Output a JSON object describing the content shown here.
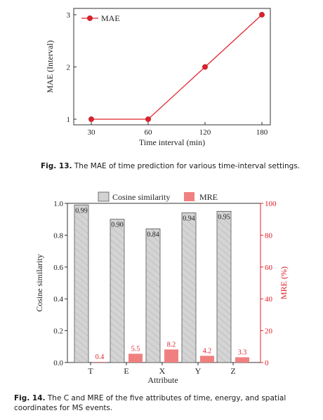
{
  "figure13": {
    "caption_label": "Fig. 13.",
    "caption_text": "The MAE of time prediction for various time-interval settings.",
    "chart_data": {
      "type": "line",
      "x": [
        "30",
        "60",
        "120",
        "180"
      ],
      "series": [
        {
          "name": "MAE",
          "values": [
            1,
            1,
            2,
            3
          ]
        }
      ],
      "xlabel": "Time interval (min)",
      "ylabel": "MAE (Interval)",
      "ylim": [
        1,
        3
      ],
      "yticks": [
        "1",
        "2",
        "3"
      ],
      "legend": "top-left",
      "color": "#e0202a"
    }
  },
  "figure14": {
    "caption_label": "Fig. 14.",
    "caption_text": "The C and MRE of the five attributes of time, energy, and spatial coordinates for MS events.",
    "chart_data": {
      "type": "bar",
      "categories": [
        "T",
        "E",
        "X",
        "Y",
        "Z"
      ],
      "series": [
        {
          "name": "Cosine similarity",
          "values": [
            0.99,
            0.9,
            0.84,
            0.94,
            0.95
          ],
          "labels": [
            "0.99",
            "0.90",
            "0.84",
            "0.94",
            "0.95"
          ],
          "axis": "left",
          "color": "#d3d3d3"
        },
        {
          "name": "MRE",
          "values": [
            0.4,
            5.5,
            8.2,
            4.2,
            3.3
          ],
          "labels": [
            "0.4",
            "5.5",
            "8.2",
            "4.2",
            "3.3"
          ],
          "axis": "right",
          "color": "#f08080"
        }
      ],
      "xlabel": "Attribute",
      "ylabel": "Cosine similarity",
      "ylabel_right": "MRE (%)",
      "ylim": [
        0.0,
        1.0
      ],
      "ylim_right": [
        0,
        100
      ],
      "yticks": [
        "0.0",
        "0.2",
        "0.4",
        "0.6",
        "0.8",
        "1.0"
      ],
      "yticks_right": [
        "0",
        "20",
        "40",
        "60",
        "80",
        "100"
      ],
      "legend": "top-center",
      "right_axis_color": "#e0202a"
    }
  }
}
